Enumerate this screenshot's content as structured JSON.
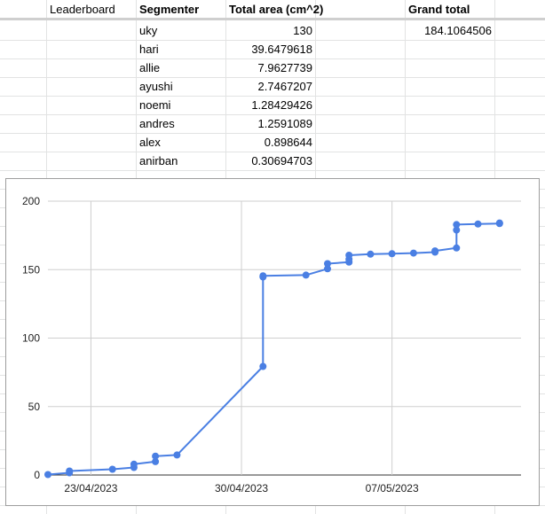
{
  "sheet": {
    "header": {
      "title": "Leaderboard",
      "col_segmenter": "Segmenter",
      "col_area": "Total area (cm^2)",
      "col_grand": "Grand total"
    },
    "rows": [
      {
        "name": "uky",
        "area": "130",
        "grand": "184.1064506"
      },
      {
        "name": "hari",
        "area": "39.6479618",
        "grand": ""
      },
      {
        "name": "allie",
        "area": "7.9627739",
        "grand": ""
      },
      {
        "name": "ayushi",
        "area": "2.7467207",
        "grand": ""
      },
      {
        "name": "noemi",
        "area": "1.28429426",
        "grand": ""
      },
      {
        "name": "andres",
        "area": "1.2591089",
        "grand": ""
      },
      {
        "name": "alex",
        "area": "0.898644",
        "grand": ""
      },
      {
        "name": "anirban",
        "area": "0.30694703",
        "grand": ""
      }
    ]
  },
  "colors": {
    "series": "#4a7fe3",
    "grid": "#cfcfcf"
  },
  "chart_data": {
    "type": "line",
    "xlabel": "",
    "ylabel": "",
    "ylim": [
      0,
      200
    ],
    "yticks": [
      0,
      50,
      100,
      150,
      200
    ],
    "xlim": [
      "2023-04-21",
      "2023-05-13"
    ],
    "xticks": [
      "2023-04-23",
      "2023-04-30",
      "2023-05-07"
    ],
    "xtick_labels": [
      "23/04/2023",
      "30/04/2023",
      "07/05/2023"
    ],
    "grid": true,
    "series": [
      {
        "points": [
          [
            "2023-04-21",
            0.3
          ],
          [
            "2023-04-22",
            1.6
          ],
          [
            "2023-04-22",
            2.9
          ],
          [
            "2023-04-24",
            4.2
          ],
          [
            "2023-04-25",
            5.5
          ],
          [
            "2023-04-25",
            7.9
          ],
          [
            "2023-04-26",
            9.8
          ],
          [
            "2023-04-26",
            13.8
          ],
          [
            "2023-04-27",
            14.6
          ],
          [
            "2023-05-01",
            79.3
          ],
          [
            "2023-05-01",
            144.6
          ],
          [
            "2023-05-01",
            145.5
          ],
          [
            "2023-05-03",
            146.0
          ],
          [
            "2023-05-04",
            150.6
          ],
          [
            "2023-05-04",
            154.4
          ],
          [
            "2023-05-05",
            155.5
          ],
          [
            "2023-05-05",
            157.6
          ],
          [
            "2023-05-05",
            160.5
          ],
          [
            "2023-05-06",
            161.3
          ],
          [
            "2023-05-07",
            161.6
          ],
          [
            "2023-05-08",
            162.1
          ],
          [
            "2023-05-09",
            162.8
          ],
          [
            "2023-05-09",
            163.7
          ],
          [
            "2023-05-10",
            165.8
          ],
          [
            "2023-05-10",
            178.9
          ],
          [
            "2023-05-10",
            182.9
          ],
          [
            "2023-05-11",
            183.3
          ],
          [
            "2023-05-12",
            183.6
          ],
          [
            "2023-05-12",
            184.1
          ]
        ]
      }
    ]
  }
}
